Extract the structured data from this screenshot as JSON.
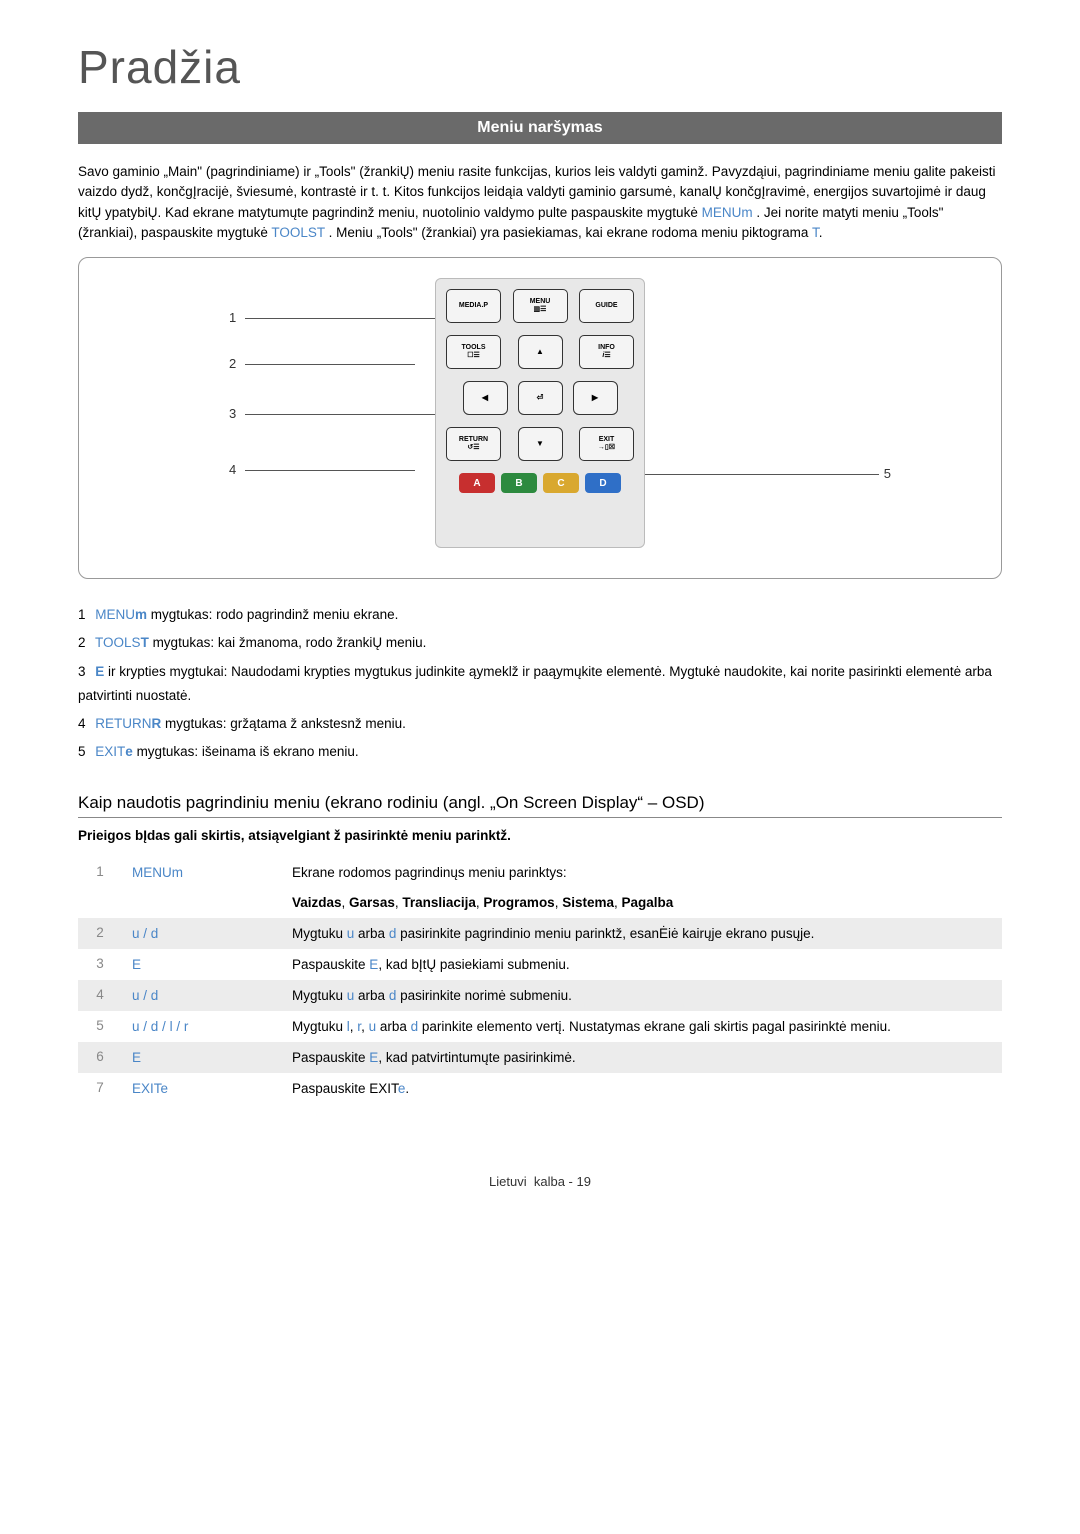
{
  "page": {
    "title": "Pradžia",
    "section_header": "Meniu naršymas",
    "intro_html": "Savo gaminio „Main\" (pagrindiniame) ir „Tools\" (žrankiŲ) meniu rasite funkcijas, kurios leis valdyti gaminž. Pavyzdąiui, pagrindiniame meniu galite pakeisti vaizdo dydž, končgĮracijė, šviesumė, kontrastė ir t. t. Kitos funkcijos leidąia valdyti gaminio garsumė, kanalŲ končgĮravimė, energijos suvartojimė ir daug kitŲ ypatybiŲ. Kad ekrane matytumųte pagrindinž meniu, nuotolinio valdymo pulte paspauskite mygtukė",
    "intro_menu": "MENU",
    "intro_menu_sym": "m",
    "intro_mid": ". Jei norite matyti meniu „Tools\" (žrankiai), paspauskite mygtukė",
    "intro_tools": "TOOLS",
    "intro_tools_sym": "T",
    "intro_tail": ". Meniu „Tools\" (žrankiai) yra pasiekiamas, kai ekrane rodoma meniu piktograma",
    "intro_end_sym": "T",
    "intro_period": "."
  },
  "remote": {
    "row1": {
      "left": "MEDIA.P",
      "mid_top": "MENU",
      "right": "GUIDE"
    },
    "row2": {
      "left": "TOOLS",
      "right": "INFO"
    },
    "row4": {
      "left": "RETURN",
      "right": "EXIT"
    },
    "colors": {
      "a": "A",
      "b": "B",
      "c": "C",
      "d": "D"
    },
    "labels": {
      "n1": "1",
      "n2": "2",
      "n3": "3",
      "n4": "4",
      "n5": "5"
    }
  },
  "legend": {
    "items": [
      {
        "num": "1",
        "kw": "MENU",
        "sym": "m",
        "text": " mygtukas: rodo pagrindinž meniu ekrane."
      },
      {
        "num": "2",
        "kw": "TOOLS",
        "sym": "T",
        "text": " mygtukas: kai žmanoma, rodo žrankiŲ meniu."
      },
      {
        "num": "3",
        "kw": "",
        "sym": "E",
        "text": " ir krypties mygtukai: Naudodami krypties mygtukus judinkite ąymeklž ir paąymųkite elementė. Mygtukė naudokite, kai norite pasirinkti elementė arba patvirtinti nuostatė."
      },
      {
        "num": "4",
        "kw": "RETURN",
        "sym": "R",
        "text": " mygtukas: gržątama ž ankstesnž meniu."
      },
      {
        "num": "5",
        "kw": "EXIT",
        "sym": "e",
        "text": " mygtukas: išeinama iš ekrano meniu."
      }
    ]
  },
  "subheading": "Kaip naudotis pagrindiniu meniu (ekrano rodiniu (angl. „On Screen Display“ – OSD)",
  "note": "Prieigos bĮdas gali skirtis, atsiąvelgiant ž pasirinktė meniu parinktž.",
  "steps": [
    {
      "n": "1",
      "col2_html": "<span>MENU</span><span style='color:#4a86c7'>m</span>",
      "col3_html": "Ekrane rodomos pagrindinųs meniu parinktys:<br><br><b>Vaizdas</b>, <b>Garsas</b>, <b>Transliacija</b>, <b>Programos</b>, <b>Sistema</b>, <b>Pagalba</b>"
    },
    {
      "n": "2",
      "col2_html": "<span class='hl'>u</span> / <span class='hl'>d</span>",
      "col3_html": "Mygtuku <span class='hl'>u</span> arba <span class='hl'>d</span> pasirinkite pagrindinio meniu parinktž, esanĖiė kairųje ekrano pusųje."
    },
    {
      "n": "3",
      "col2_html": "<span class='hl'>E</span>",
      "col3_html": "Paspauskite <span class='hl'>E</span>, kad bĮtŲ pasiekiami submeniu."
    },
    {
      "n": "4",
      "col2_html": "<span class='hl'>u</span> / <span class='hl'>d</span>",
      "col3_html": "Mygtuku <span class='hl'>u</span> arba <span class='hl'>d</span> pasirinkite norimė submeniu."
    },
    {
      "n": "5",
      "col2_html": "<span class='hl'>u</span> / <span class='hl'>d</span> / <span class='hl'>l</span> / <span class='hl'>r</span>",
      "col3_html": "Mygtuku <span class='hl'>l</span>, <span class='hl'>r</span>, <span class='hl'>u</span> arba <span class='hl'>d</span> parinkite elemento vertį. Nustatymas ekrane gali skirtis pagal pasirinktė meniu."
    },
    {
      "n": "6",
      "col2_html": "<span class='hl'>E</span>",
      "col3_html": "Paspauskite <span class='hl'>E</span>, kad patvirtintumųte pasirinkimė."
    },
    {
      "n": "7",
      "col2_html": "<span>EXIT</span><span class='hl'>e</span>",
      "col3_html": "Paspauskite <span>EXIT</span><span class='hl'>e</span>."
    }
  ],
  "footer": "Lietuvi  kalba - 19",
  "colors": {
    "accent": "#4a86c7",
    "header_bg": "#6a6a6a",
    "bignum": "#888888",
    "c_a": "#c72f2f",
    "c_b": "#2d8a3f",
    "c_c": "#d9a82f",
    "c_d": "#2f6fc7"
  }
}
